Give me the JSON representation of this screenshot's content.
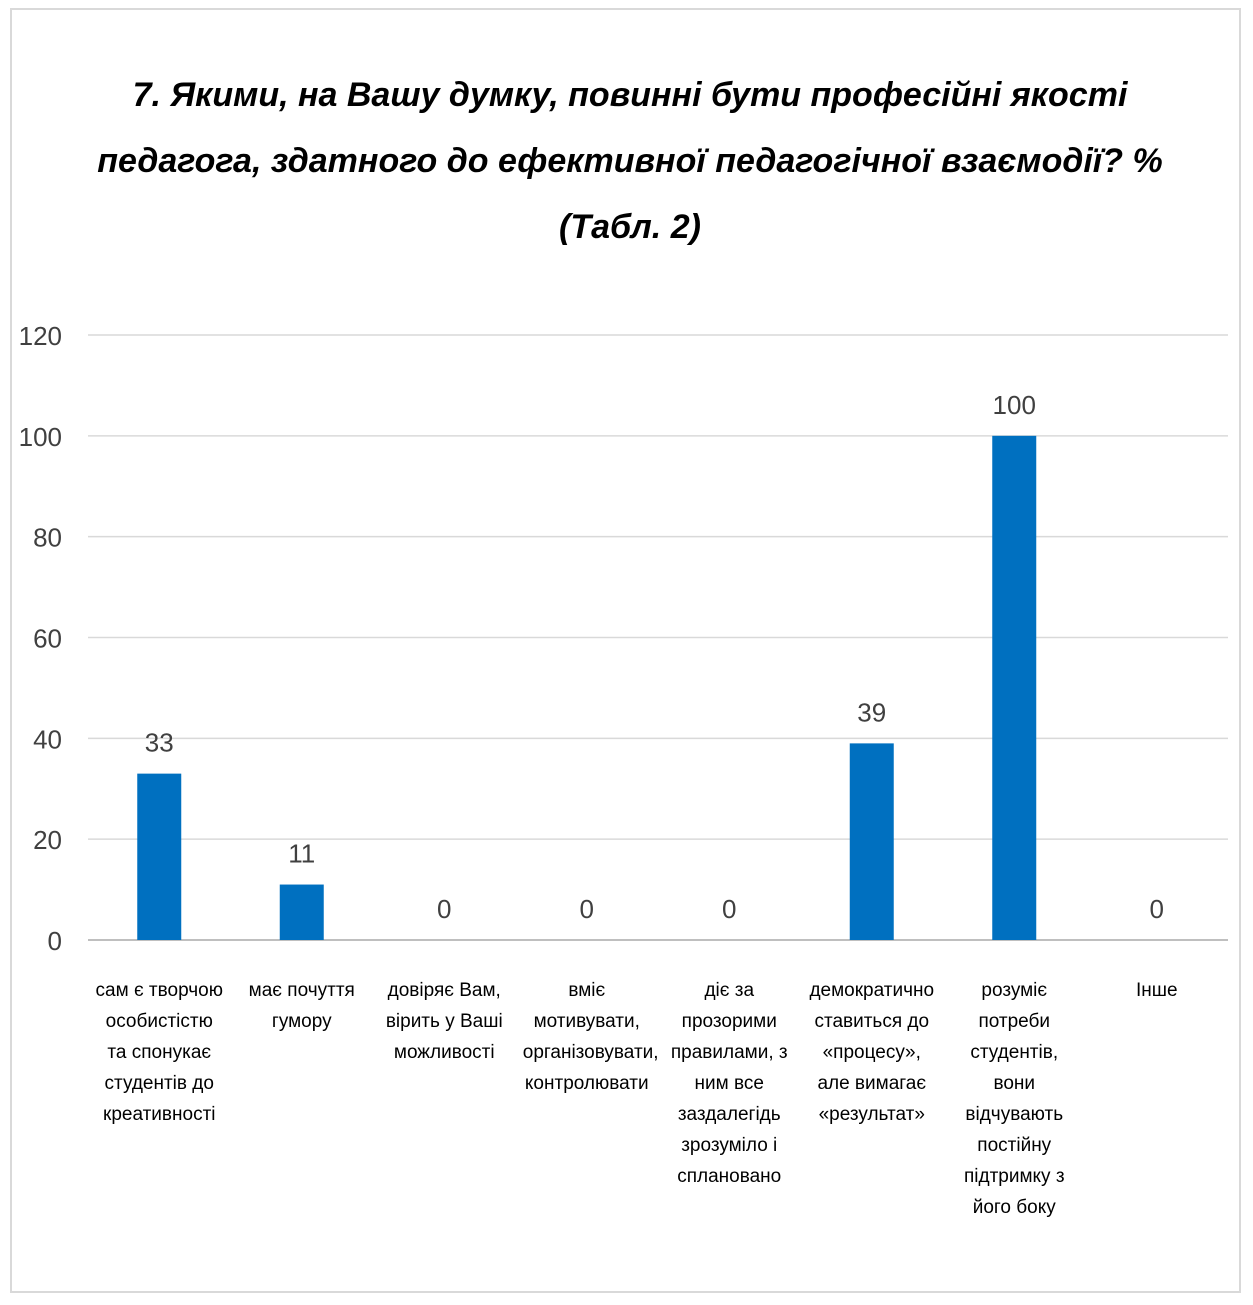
{
  "chart_data": {
    "type": "bar",
    "title_lines": [
      "7. Якими, на Вашу думку, повинні бути професійні якості",
      "педагога, здатного до ефективної педагогічної взаємодії? %",
      "(Табл. 2)"
    ],
    "categories": [
      "сам є творчою особистістю та спонукає студентів до креативності",
      "має почуття гумору",
      "довіряє Вам, вірить у Ваші можливості",
      "вміє мотивувати, організовувати, контролювати",
      "діє за прозорими правилами, з ним все заздалегідь зрозуміло і сплановано",
      "демократично ставиться до «процесу», але вимагає «результат»",
      "розуміє потреби студентів, вони відчувають постійну підтримку з його боку",
      "Інше"
    ],
    "values": [
      33,
      11,
      0,
      0,
      0,
      39,
      100,
      0
    ],
    "ylim": [
      0,
      120
    ],
    "yticks": [
      "0",
      "20",
      "40",
      "60",
      "80",
      "100",
      "120"
    ],
    "grid": true,
    "bar_color": "#0070C0",
    "data_labels": true
  }
}
